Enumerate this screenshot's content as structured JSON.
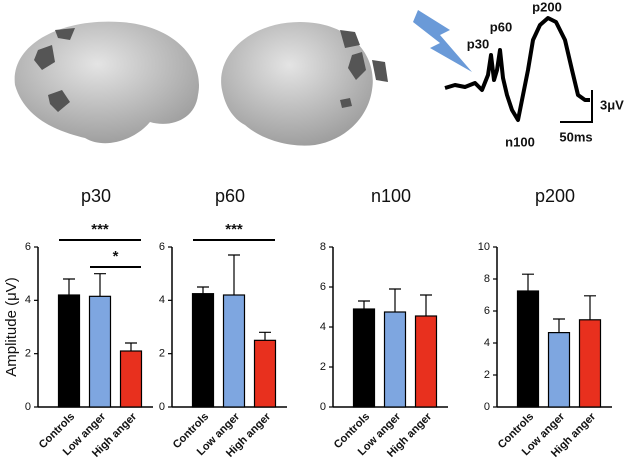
{
  "waveform": {
    "peaks": [
      "p30",
      "p60",
      "n100",
      "p200"
    ],
    "scale_y": "3μV",
    "scale_x": "50ms"
  },
  "chart_data": [
    {
      "type": "bar",
      "title": "p30",
      "ylabel": "Amplitude (μV)",
      "categories": [
        "Controls",
        "Low anger",
        "High anger"
      ],
      "values": [
        4.2,
        4.15,
        2.1
      ],
      "errors": [
        0.6,
        0.85,
        0.3
      ],
      "colors": [
        "#000000",
        "#7ea6e0",
        "#e8301e"
      ],
      "ylim": [
        0,
        6
      ],
      "yticks": [
        0,
        2,
        4,
        6
      ],
      "annotations": [
        "***",
        "*"
      ]
    },
    {
      "type": "bar",
      "title": "p60",
      "categories": [
        "Controls",
        "Low anger",
        "High anger"
      ],
      "values": [
        4.25,
        4.2,
        2.5
      ],
      "errors": [
        0.25,
        1.5,
        0.3
      ],
      "colors": [
        "#000000",
        "#7ea6e0",
        "#e8301e"
      ],
      "ylim": [
        0,
        6
      ],
      "yticks": [
        0,
        2,
        4,
        6
      ],
      "annotations": [
        "***"
      ]
    },
    {
      "type": "bar",
      "title": "n100",
      "categories": [
        "Controls",
        "Low anger",
        "High anger"
      ],
      "values": [
        4.9,
        4.75,
        4.55
      ],
      "errors": [
        0.4,
        1.15,
        1.05
      ],
      "colors": [
        "#000000",
        "#7ea6e0",
        "#e8301e"
      ],
      "ylim": [
        0,
        8
      ],
      "yticks": [
        0,
        2,
        4,
        6,
        8
      ]
    },
    {
      "type": "bar",
      "title": "p200",
      "categories": [
        "Controls",
        "Low anger",
        "High anger"
      ],
      "values": [
        7.25,
        4.65,
        5.45
      ],
      "errors": [
        1.05,
        0.85,
        1.5
      ],
      "colors": [
        "#000000",
        "#7ea6e0",
        "#e8301e"
      ],
      "ylim": [
        0,
        10
      ],
      "yticks": [
        0,
        2,
        4,
        6,
        8,
        10
      ]
    }
  ]
}
